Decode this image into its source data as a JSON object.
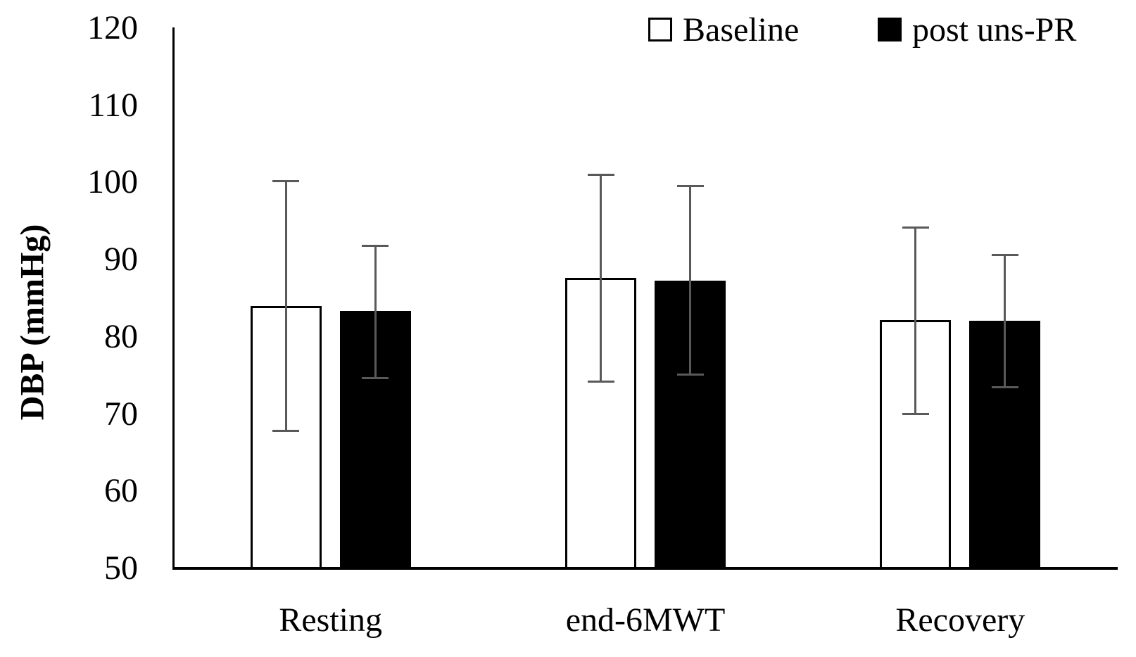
{
  "page": {
    "background": "#ffffff"
  },
  "chart_data": {
    "type": "bar",
    "title": "",
    "xlabel": "",
    "ylabel": "DBP (mmHg)",
    "ylim": [
      50,
      120
    ],
    "yticks": [
      50,
      60,
      70,
      80,
      90,
      100,
      110,
      120
    ],
    "grid": false,
    "legend_position": "top-right",
    "categories": [
      "Resting",
      "end-6MWT",
      "Recovery"
    ],
    "series": [
      {
        "name": "Baseline",
        "swatch": "open",
        "fill": "#ffffff",
        "border": "#000000",
        "values": [
          84.0,
          87.6,
          82.2
        ],
        "error_low": [
          67.8,
          74.2,
          70.0
        ],
        "error_high": [
          100.2,
          101.0,
          94.2
        ]
      },
      {
        "name": "post uns-PR",
        "swatch": "filled",
        "fill": "#000000",
        "border": "#000000",
        "values": [
          83.4,
          87.3,
          82.1
        ],
        "error_low": [
          74.7,
          75.1,
          73.5
        ],
        "error_high": [
          91.8,
          99.5,
          90.6
        ]
      }
    ],
    "error_bar_color": "#595959",
    "axis_color": "#000000"
  }
}
